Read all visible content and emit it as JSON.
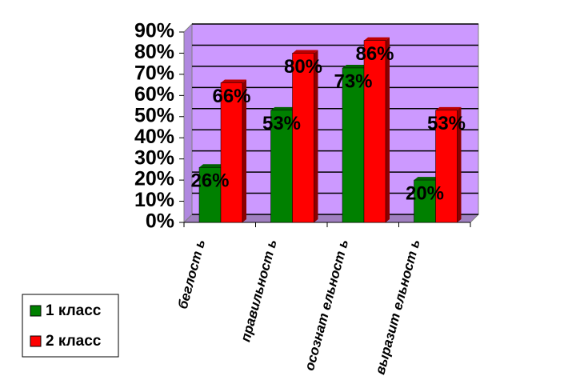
{
  "chart_data": {
    "type": "bar",
    "categories": [
      "беглост ь",
      "правильност ь",
      "осознат ельност ь",
      "выразит ельност ь"
    ],
    "series": [
      {
        "name": "1 класс",
        "color": "#008000",
        "values": [
          26,
          53,
          73,
          20
        ],
        "value_labels": [
          "26%",
          "53%",
          "73%",
          "20%"
        ]
      },
      {
        "name": "2 класс",
        "color": "#ff0000",
        "values": [
          66,
          80,
          86,
          53
        ],
        "value_labels": [
          "66%",
          "80%",
          "86%",
          "53%"
        ]
      }
    ],
    "ylim": [
      0,
      90
    ],
    "yticks": [
      {
        "value": 0,
        "label": "0%"
      },
      {
        "value": 10,
        "label": "10%"
      },
      {
        "value": 20,
        "label": "20%"
      },
      {
        "value": 30,
        "label": "30%"
      },
      {
        "value": 40,
        "label": "40%"
      },
      {
        "value": 50,
        "label": "50%"
      },
      {
        "value": 60,
        "label": "60%"
      },
      {
        "value": 70,
        "label": "70%"
      },
      {
        "value": 80,
        "label": "80%"
      },
      {
        "value": 90,
        "label": "90%"
      }
    ],
    "grid": true,
    "legend": "bottom-left"
  }
}
